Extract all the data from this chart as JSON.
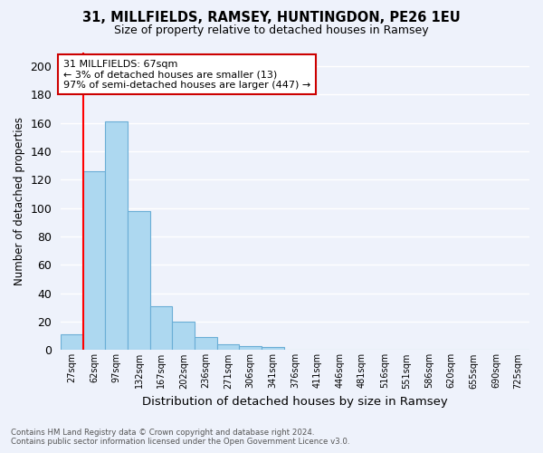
{
  "title_line1": "31, MILLFIELDS, RAMSEY, HUNTINGDON, PE26 1EU",
  "title_line2": "Size of property relative to detached houses in Ramsey",
  "xlabel": "Distribution of detached houses by size in Ramsey",
  "ylabel": "Number of detached properties",
  "bar_labels": [
    "27sqm",
    "62sqm",
    "97sqm",
    "132sqm",
    "167sqm",
    "202sqm",
    "236sqm",
    "271sqm",
    "306sqm",
    "341sqm",
    "376sqm",
    "411sqm",
    "446sqm",
    "481sqm",
    "516sqm",
    "551sqm",
    "586sqm",
    "620sqm",
    "655sqm",
    "690sqm",
    "725sqm"
  ],
  "bar_values": [
    11,
    126,
    161,
    98,
    31,
    20,
    9,
    4,
    3,
    2,
    0,
    0,
    0,
    0,
    0,
    0,
    0,
    0,
    0,
    0,
    0
  ],
  "bar_color": "#add8f0",
  "bar_edge_color": "#6aaed6",
  "background_color": "#eef2fb",
  "grid_color": "#ffffff",
  "red_line_index": 1,
  "annotation_text": "31 MILLFIELDS: 67sqm\n← 3% of detached houses are smaller (13)\n97% of semi-detached houses are larger (447) →",
  "annotation_box_color": "#ffffff",
  "annotation_box_edge": "#cc0000",
  "footnote_line1": "Contains HM Land Registry data © Crown copyright and database right 2024.",
  "footnote_line2": "Contains public sector information licensed under the Open Government Licence v3.0.",
  "ylim": [
    0,
    210
  ],
  "yticks": [
    0,
    20,
    40,
    60,
    80,
    100,
    120,
    140,
    160,
    180,
    200
  ]
}
